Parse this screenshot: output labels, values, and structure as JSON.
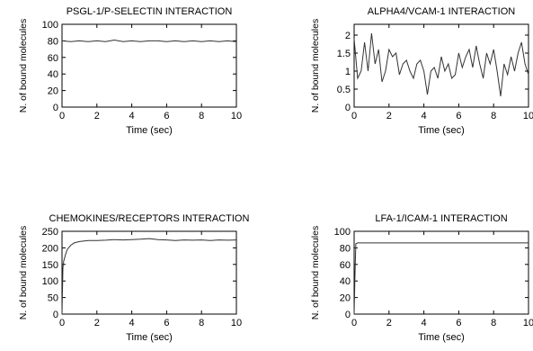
{
  "chart_data": [
    {
      "type": "line",
      "title": "PSGL-1/P-SELECTIN INTERACTION",
      "xlabel": "Time (sec)",
      "ylabel": "N. of bound molecules",
      "xlim": [
        0,
        10
      ],
      "ylim": [
        0,
        100
      ],
      "xticks": [
        0,
        2,
        4,
        6,
        8,
        10
      ],
      "yticks": [
        0,
        20,
        40,
        60,
        80,
        100
      ],
      "grid": false,
      "series": [
        {
          "x": [
            0,
            0.5,
            1.0,
            1.5,
            2.0,
            2.5,
            3.0,
            3.5,
            4.0,
            4.5,
            5.0,
            5.5,
            6.0,
            6.5,
            7.0,
            7.5,
            8.0,
            8.5,
            9.0,
            9.5,
            10.0
          ],
          "y": [
            80,
            79,
            80,
            79,
            80,
            79,
            81,
            79,
            80,
            79,
            80,
            80,
            79,
            80,
            79,
            80,
            79,
            80,
            79,
            80,
            79
          ]
        }
      ]
    },
    {
      "type": "line",
      "title": "ALPHA4/VCAM-1 INTERACTION",
      "xlabel": "Time (sec)",
      "ylabel": "N. of bound molecules",
      "xlim": [
        0,
        10
      ],
      "ylim": [
        0,
        2.3
      ],
      "xticks": [
        0,
        2,
        4,
        6,
        8,
        10
      ],
      "yticks": [
        0,
        0.5,
        1,
        1.5,
        2
      ],
      "grid": false,
      "series": [
        {
          "x": [
            0,
            0.2,
            0.4,
            0.6,
            0.8,
            1.0,
            1.2,
            1.4,
            1.6,
            1.8,
            2.0,
            2.2,
            2.4,
            2.6,
            2.8,
            3.0,
            3.2,
            3.4,
            3.6,
            3.8,
            4.0,
            4.2,
            4.4,
            4.6,
            4.8,
            5.0,
            5.2,
            5.4,
            5.6,
            5.8,
            6.0,
            6.2,
            6.4,
            6.6,
            6.8,
            7.0,
            7.2,
            7.4,
            7.6,
            7.8,
            8.0,
            8.2,
            8.4,
            8.6,
            8.8,
            9.0,
            9.2,
            9.4,
            9.6,
            9.8,
            10.0
          ],
          "y": [
            1.9,
            0.8,
            1.0,
            1.8,
            1.0,
            2.05,
            1.2,
            1.6,
            0.7,
            1.0,
            1.6,
            1.4,
            1.5,
            0.9,
            1.2,
            1.3,
            1.0,
            0.8,
            1.2,
            1.3,
            1.0,
            0.35,
            1.0,
            1.1,
            0.8,
            1.4,
            1.0,
            1.2,
            0.8,
            0.9,
            1.5,
            1.1,
            1.4,
            1.6,
            1.1,
            1.7,
            1.2,
            0.8,
            1.5,
            1.2,
            1.6,
            1.0,
            0.3,
            1.2,
            0.9,
            1.4,
            1.0,
            1.5,
            1.8,
            1.2,
            0.9
          ]
        }
      ]
    },
    {
      "type": "line",
      "title": "CHEMOKINES/RECEPTORS INTERACTION",
      "xlabel": "Time (sec)",
      "ylabel": "N. of bound molecules",
      "xlim": [
        0,
        10
      ],
      "ylim": [
        0,
        250
      ],
      "xticks": [
        0,
        2,
        4,
        6,
        8,
        10
      ],
      "yticks": [
        0,
        50,
        100,
        150,
        200,
        250
      ],
      "grid": false,
      "series": [
        {
          "x": [
            0,
            0.05,
            0.1,
            0.2,
            0.3,
            0.5,
            0.7,
            1.0,
            1.5,
            2.0,
            2.5,
            3.0,
            3.5,
            4.0,
            4.5,
            5.0,
            5.5,
            6.0,
            6.5,
            7.0,
            7.5,
            8.0,
            8.5,
            9.0,
            9.5,
            10.0
          ],
          "y": [
            0,
            140,
            160,
            180,
            195,
            208,
            215,
            219,
            222,
            222,
            223,
            225,
            224,
            225,
            226,
            228,
            225,
            224,
            222,
            224,
            223,
            224,
            222,
            224,
            223,
            224
          ]
        }
      ]
    },
    {
      "type": "line",
      "title": "LFA-1/ICAM-1 INTERACTION",
      "xlabel": "Time (sec)",
      "ylabel": "N. of bound molecules",
      "xlim": [
        0,
        10
      ],
      "ylim": [
        0,
        100
      ],
      "xticks": [
        0,
        2,
        4,
        6,
        8,
        10
      ],
      "yticks": [
        0,
        20,
        40,
        60,
        80,
        100
      ],
      "grid": false,
      "series": [
        {
          "x": [
            0,
            0.05,
            0.1,
            0.2,
            1.0,
            3.0,
            5.0,
            7.0,
            10.0
          ],
          "y": [
            0,
            50,
            85,
            86,
            86,
            86,
            86,
            86,
            86
          ]
        }
      ]
    }
  ]
}
